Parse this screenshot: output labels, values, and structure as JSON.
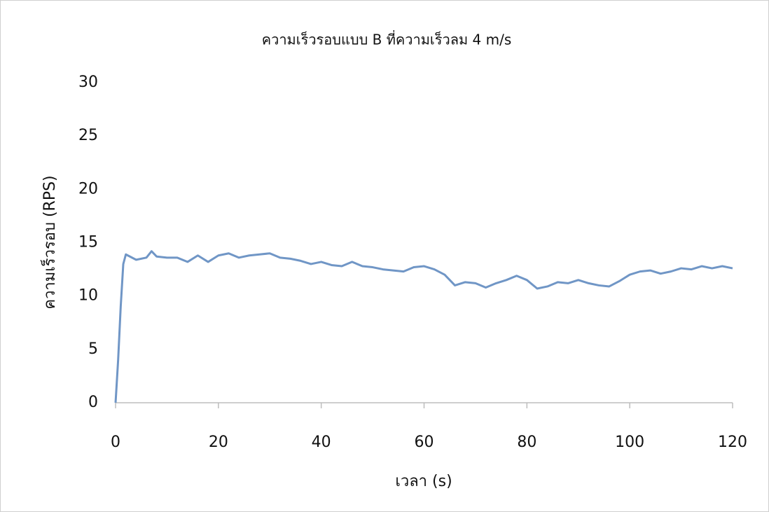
{
  "chart_data": {
    "type": "line",
    "title": "ความเร็วรอบแบบ B ที่ความเร็วลม 4 m/s",
    "x_label": "เวลา (s)",
    "y_label": "ความเร็วรอบ (RPS)",
    "color": "#7096c6",
    "x": [
      0,
      0.5,
      1,
      1.5,
      2,
      4,
      6,
      7,
      8,
      10,
      12,
      14,
      16,
      18,
      20,
      22,
      24,
      26,
      28,
      30,
      32,
      34,
      36,
      38,
      40,
      42,
      44,
      46,
      48,
      50,
      52,
      54,
      56,
      58,
      60,
      62,
      64,
      66,
      68,
      70,
      72,
      74,
      76,
      78,
      80,
      82,
      84,
      86,
      88,
      90,
      92,
      94,
      96,
      98,
      100,
      102,
      104,
      106,
      108,
      110,
      112,
      114,
      116,
      118,
      120
    ],
    "values": [
      0,
      4,
      9,
      13,
      13.9,
      13.4,
      13.6,
      14.2,
      13.7,
      13.6,
      13.6,
      13.2,
      13.8,
      13.2,
      13.8,
      14.0,
      13.6,
      13.8,
      13.9,
      14.0,
      13.6,
      13.5,
      13.3,
      13.0,
      13.2,
      12.9,
      12.8,
      13.2,
      12.8,
      12.7,
      12.5,
      12.4,
      12.3,
      12.7,
      12.8,
      12.5,
      12.0,
      11.0,
      11.3,
      11.2,
      10.8,
      11.2,
      11.5,
      11.9,
      11.5,
      10.7,
      10.9,
      11.3,
      11.2,
      11.5,
      11.2,
      11.0,
      10.9,
      11.4,
      12.0,
      12.3,
      12.4,
      12.1,
      12.3,
      12.6,
      12.5,
      12.8,
      12.6,
      12.8,
      12.6
    ],
    "xlim": [
      0,
      120
    ],
    "xticks": [
      0,
      20,
      40,
      60,
      80,
      100,
      120
    ],
    "ylim": [
      0,
      30
    ],
    "yticks": [
      0,
      5,
      10,
      15,
      20,
      25,
      30
    ]
  }
}
